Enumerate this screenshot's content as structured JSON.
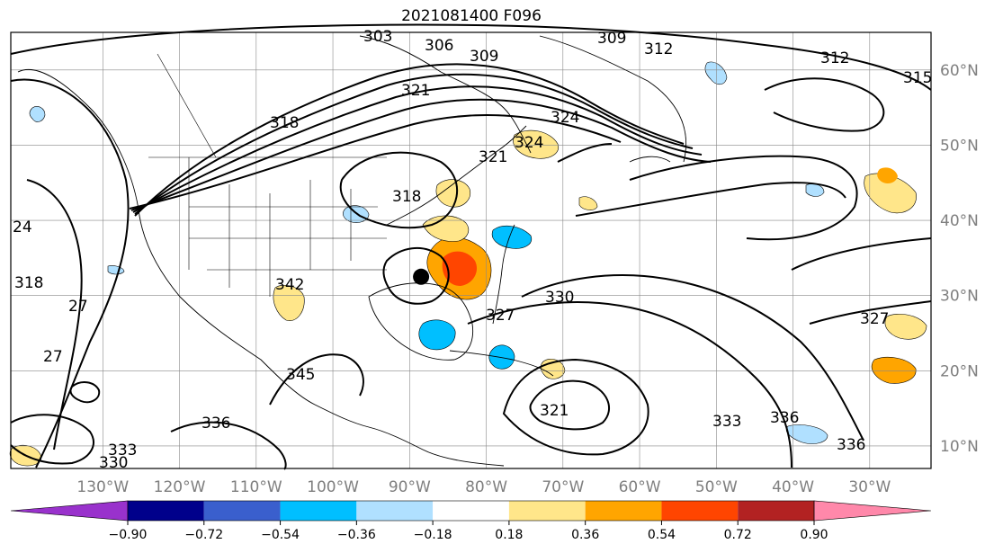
{
  "title": "2021081400 F096",
  "map": {
    "projection": "plate-carree",
    "lon_range": [
      -142,
      -22
    ],
    "lat_range": [
      7,
      65
    ],
    "grid": true,
    "lat_labels": [
      "10°N",
      "20°N",
      "30°N",
      "40°N",
      "50°N",
      "60°N"
    ],
    "lon_labels": [
      "130°W",
      "120°W",
      "110°W",
      "100°W",
      "90°W",
      "80°W",
      "70°W",
      "60°W",
      "50°W",
      "40°W",
      "30°W"
    ],
    "marker": {
      "name": "black-dot",
      "lon": -88.5,
      "lat": 32.5
    },
    "contour_labels": [
      "303",
      "306",
      "309",
      "309",
      "312",
      "312",
      "315",
      "318",
      "321",
      "321",
      "324",
      "324",
      "327",
      "327",
      "321",
      "330",
      "333",
      "336",
      "336",
      "336",
      "342",
      "345",
      "330",
      "333",
      "318",
      "24",
      "27",
      "27",
      "318"
    ]
  },
  "colorbar": {
    "labels": [
      "−0.90",
      "−0.72",
      "−0.54",
      "−0.36",
      "−0.18",
      "0.18",
      "0.36",
      "0.54",
      "0.72",
      "0.90"
    ],
    "colors": [
      "#9932cc",
      "#00008b",
      "#3a5fcd",
      "#00bfff",
      "#b0e0ff",
      "#ffffff",
      "#ffe68a",
      "#ffa500",
      "#ff4500",
      "#b22222",
      "#ff88aa"
    ]
  }
}
